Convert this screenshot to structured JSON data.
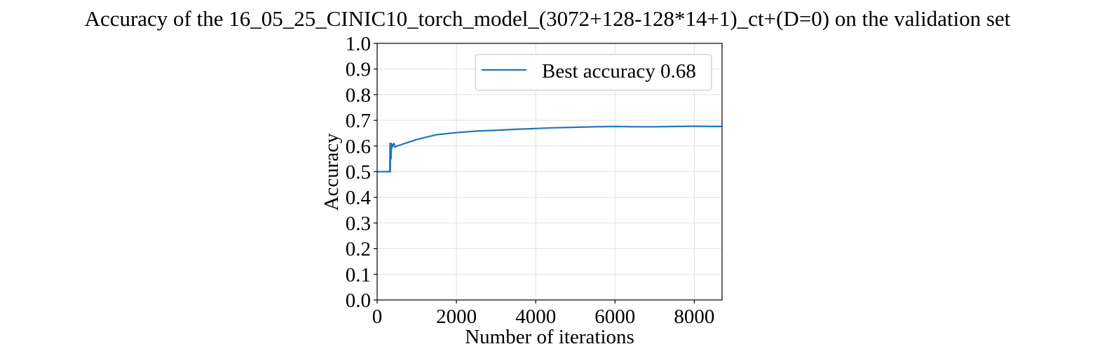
{
  "chart_data": {
    "type": "line",
    "title": "Accuracy of the 16_05_25_CINIC10_torch_model_(3072+128-128*14+1)_ct+(D=0) on the validation set",
    "xlabel": "Number of iterations",
    "ylabel": "Accuracy",
    "xlim": [
      0,
      8700
    ],
    "ylim": [
      0,
      1.0
    ],
    "xticks": [
      0,
      2000,
      4000,
      6000,
      8000
    ],
    "xtick_labels": [
      "0",
      "2000",
      "4000",
      "6000",
      "8000"
    ],
    "yticks": [
      0,
      0.1,
      0.2,
      0.3,
      0.4,
      0.5,
      0.6,
      0.7,
      0.8,
      0.9,
      1.0
    ],
    "ytick_labels": [
      "0.0",
      "0.1",
      "0.2",
      "0.3",
      "0.4",
      "0.5",
      "0.6",
      "0.7",
      "0.8",
      "0.9",
      "1.0"
    ],
    "grid": true,
    "legend_position": "top-right",
    "colors": {
      "series": "#1f77b4",
      "grid": "#e0e0e0"
    },
    "series": [
      {
        "name": "Best accuracy 0.68",
        "x": [
          0,
          320,
          325,
          330,
          340,
          350,
          360,
          370,
          380,
          390,
          400,
          420,
          450,
          500,
          600,
          700,
          800,
          1000,
          1200,
          1500,
          1800,
          2000,
          2500,
          3000,
          3500,
          4000,
          4500,
          5000,
          5500,
          6000,
          6500,
          7000,
          7500,
          8000,
          8500,
          8700
        ],
        "y": [
          0.5,
          0.5,
          0.61,
          0.5,
          0.6,
          0.55,
          0.61,
          0.59,
          0.6,
          0.605,
          0.6,
          0.61,
          0.595,
          0.6,
          0.605,
          0.61,
          0.615,
          0.625,
          0.633,
          0.644,
          0.649,
          0.652,
          0.658,
          0.661,
          0.665,
          0.668,
          0.671,
          0.673,
          0.675,
          0.676,
          0.675,
          0.675,
          0.676,
          0.677,
          0.676,
          0.676
        ]
      }
    ]
  }
}
